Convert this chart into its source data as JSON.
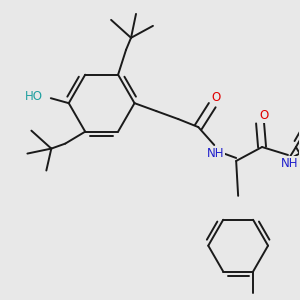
{
  "bg_color": "#e8e8e8",
  "bond_color": "#1a1a1a",
  "bond_width": 1.4,
  "atom_colors": {
    "O": "#e00000",
    "N": "#2020cc",
    "HO": "#20a0a0",
    "C": "#1a1a1a"
  },
  "font_size": 8.0
}
